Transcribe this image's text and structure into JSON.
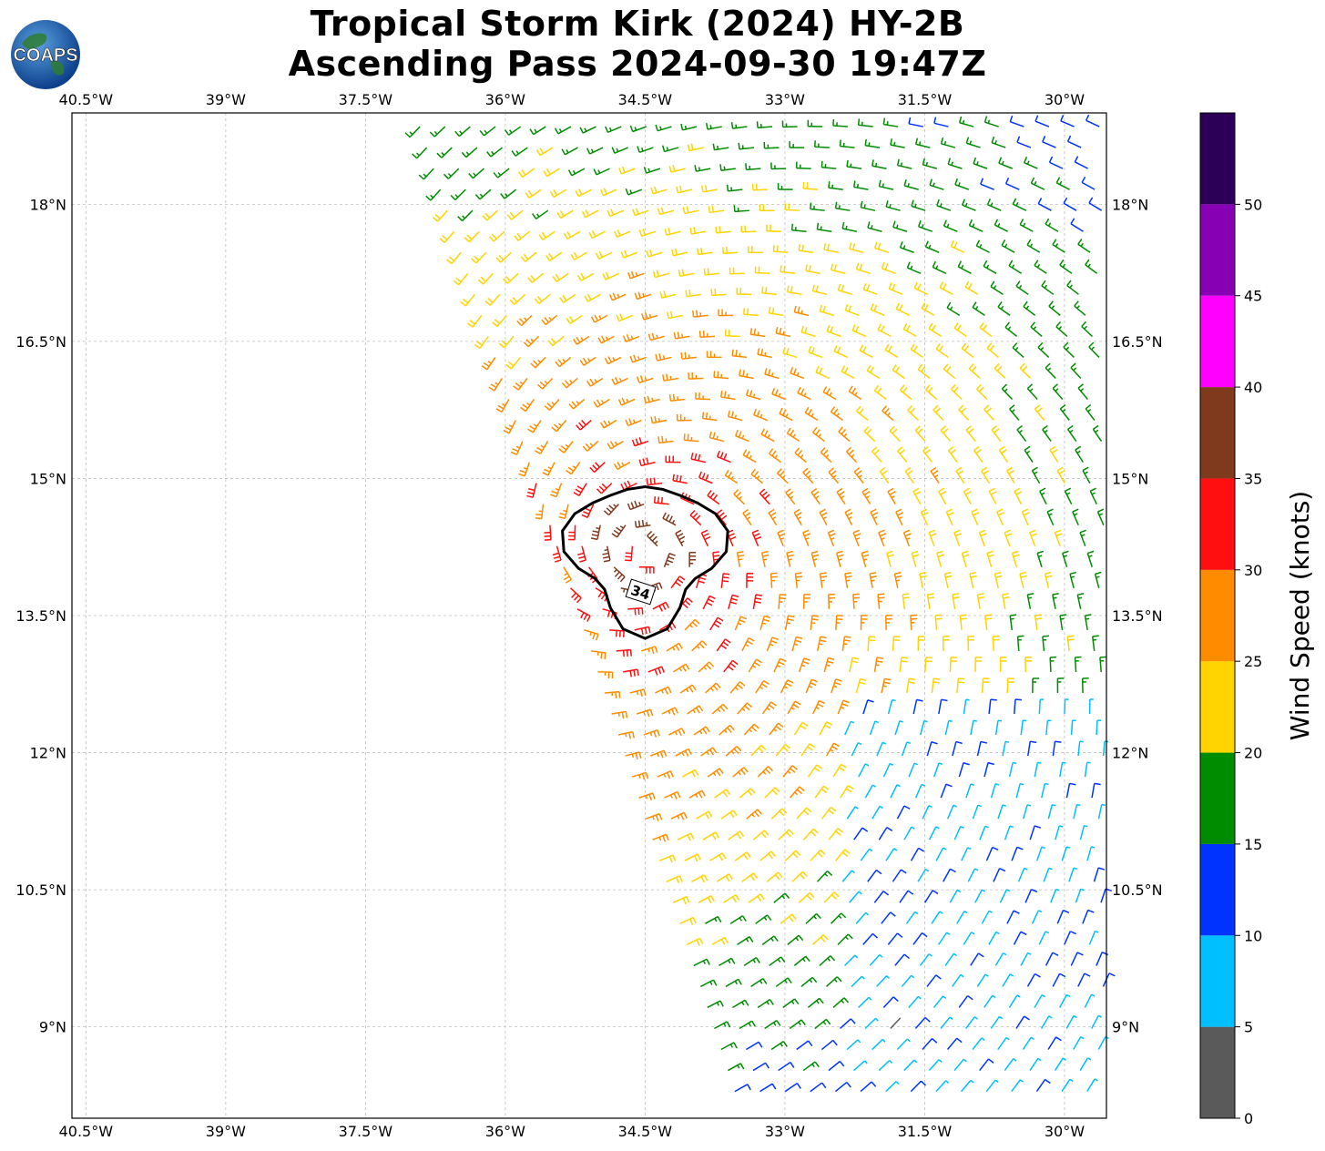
{
  "header": {
    "title_line1": "Tropical Storm Kirk (2024) HY-2B",
    "title_line2": "Ascending Pass 2024-09-30 19:47Z",
    "logo_text": "COAPS"
  },
  "chart_data": {
    "type": "wind-barb-map",
    "title": "Tropical Storm Kirk (2024) HY-2B Ascending Pass 2024-09-30 19:47Z",
    "lon_range": [
      -40.65,
      -29.55
    ],
    "lat_range": [
      8.0,
      19.0
    ],
    "lon_ticks": [
      "40.5°W",
      "39°W",
      "37.5°W",
      "36°W",
      "34.5°W",
      "33°W",
      "31.5°W",
      "30°W"
    ],
    "lat_ticks": [
      "18°N",
      "16.5°N",
      "15°N",
      "13.5°N",
      "12°N",
      "10.5°N",
      "9°N"
    ],
    "grid": true,
    "storm_center": {
      "lon": -34.5,
      "lat": 14.2
    },
    "contour": {
      "label": "34",
      "units": "knots"
    },
    "colorbar": {
      "label": "Wind Speed (knots)",
      "ticks": [
        "0",
        "5",
        "10",
        "15",
        "20",
        "25",
        "30",
        "35",
        "40",
        "45",
        "50"
      ],
      "bins": [
        {
          "min": 0,
          "max": 5,
          "color": "#5a5a5a"
        },
        {
          "min": 5,
          "max": 10,
          "color": "#00bfff"
        },
        {
          "min": 10,
          "max": 15,
          "color": "#0033ff"
        },
        {
          "min": 15,
          "max": 20,
          "color": "#008c00"
        },
        {
          "min": 20,
          "max": 25,
          "color": "#ffd400"
        },
        {
          "min": 25,
          "max": 30,
          "color": "#ff8c00"
        },
        {
          "min": 30,
          "max": 35,
          "color": "#ff0f0f"
        },
        {
          "min": 35,
          "max": 40,
          "color": "#7f3a1e"
        },
        {
          "min": 40,
          "max": 45,
          "color": "#ff00ff"
        },
        {
          "min": 45,
          "max": 50,
          "color": "#8800b4"
        },
        {
          "min": 50,
          "max": 55,
          "color": "#2d0058"
        }
      ]
    }
  }
}
